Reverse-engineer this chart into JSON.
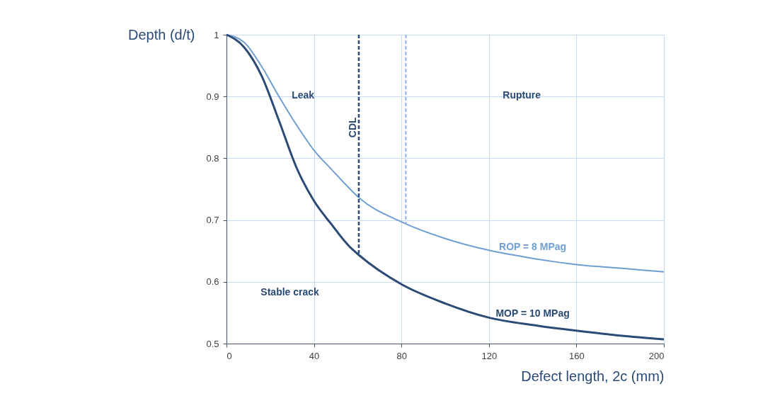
{
  "chart_data": {
    "type": "line",
    "xlabel": "Defect length, 2c (mm)",
    "ylabel": "Depth (d/t)",
    "xlim": [
      0,
      200
    ],
    "xticks": [
      0,
      40,
      80,
      120,
      160,
      200
    ],
    "ylim": [
      0.5,
      1
    ],
    "yticks": [
      0.5,
      0.6,
      0.7,
      0.8,
      0.9,
      1
    ],
    "grid": true,
    "marker": "none",
    "series": [
      {
        "name": "ROP = 8 MPag",
        "color": "#6f9fd2",
        "line_style": "solid",
        "x": [
          0,
          8,
          16,
          24,
          32,
          40,
          48,
          56,
          60,
          80,
          100,
          120,
          140,
          160,
          180,
          200
        ],
        "values": [
          1,
          0.988,
          0.949,
          0.9,
          0.854,
          0.813,
          0.782,
          0.752,
          0.738,
          0.697,
          0.67,
          0.651,
          0.638,
          0.628,
          0.622,
          0.616
        ]
      },
      {
        "name": "MOP = 10 MPag",
        "color": "#2b4a75",
        "line_style": "solid",
        "x": [
          0,
          8,
          16,
          24,
          32,
          40,
          48,
          56,
          60,
          80,
          100,
          120,
          140,
          160,
          180,
          200
        ],
        "values": [
          1,
          0.98,
          0.934,
          0.861,
          0.785,
          0.731,
          0.693,
          0.658,
          0.645,
          0.596,
          0.565,
          0.542,
          0.53,
          0.521,
          0.513,
          0.507
        ]
      },
      {
        "color": "#2b4a75",
        "line_style": "dashed",
        "x": [
          60.5,
          60.5
        ],
        "values": [
          1,
          0.645
        ]
      },
      {
        "color": "#8fb3de",
        "line_style": "dashed",
        "x": [
          82,
          82
        ],
        "values": [
          1,
          0.693
        ]
      }
    ],
    "annotations": [
      "Leak",
      "Rupture",
      "Stable crack",
      "CDL"
    ]
  }
}
